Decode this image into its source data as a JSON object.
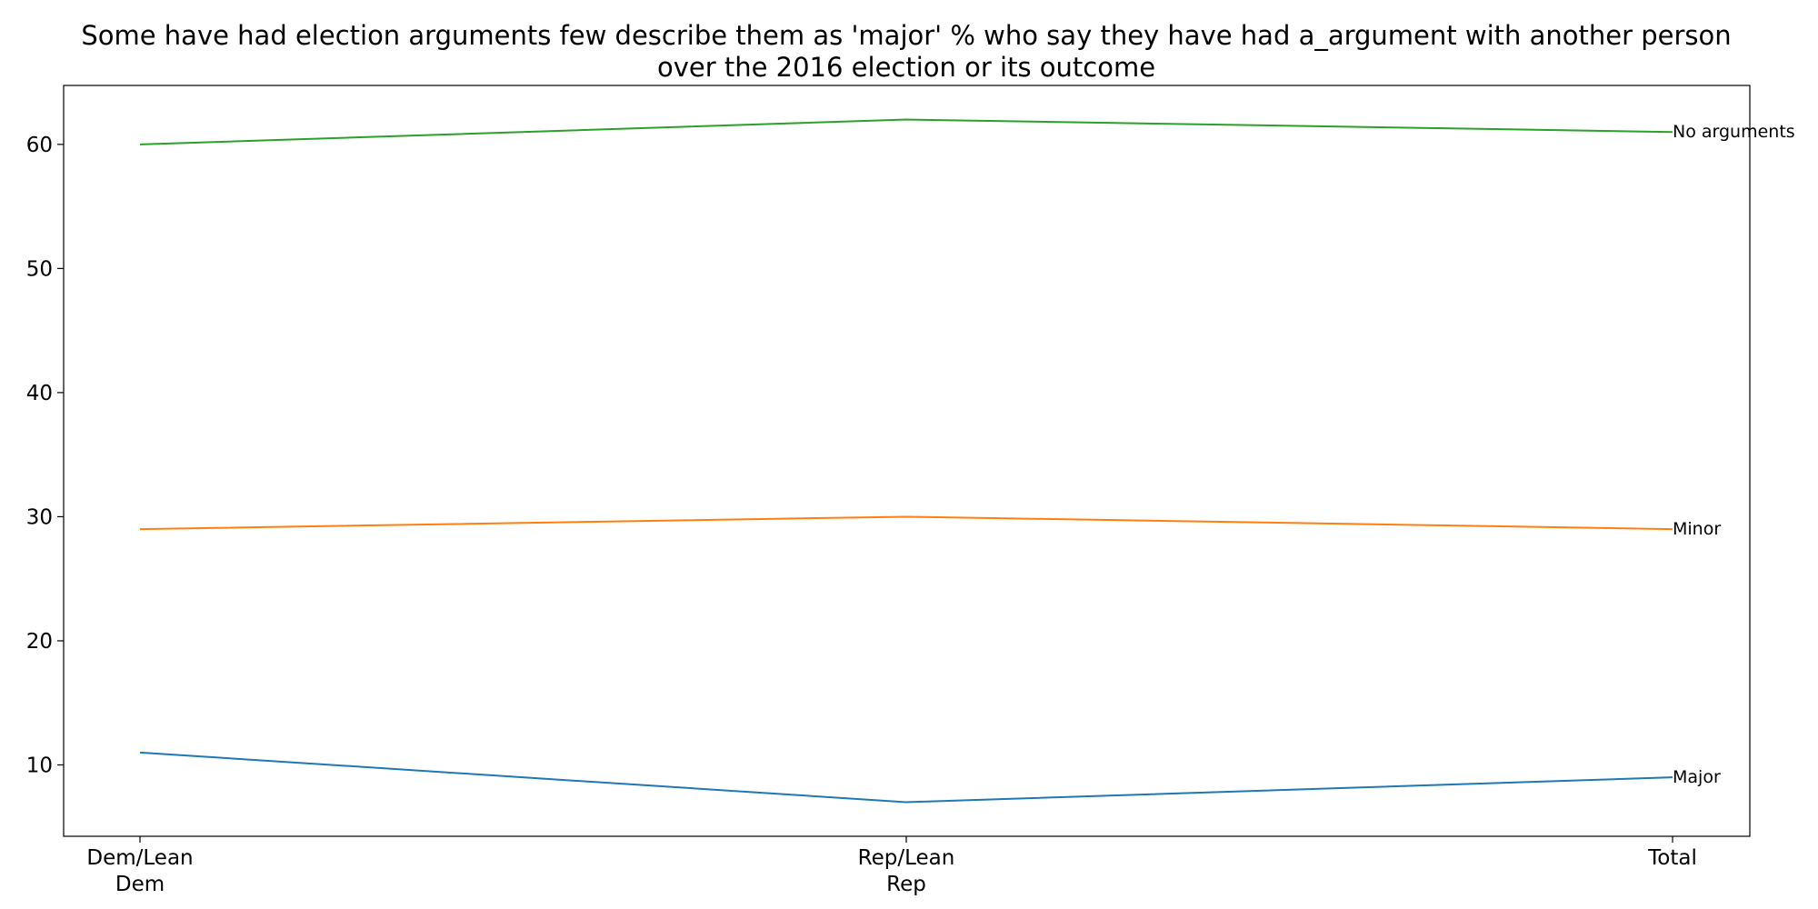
{
  "chart_data": {
    "type": "line",
    "title": "Some have had election arguments few describe them as 'major' % who say they have had a_argument with another person over the 2016 election or its outcome",
    "title_lines": [
      "Some have had election arguments few describe them as 'major' % who say they have had a_argument with another person",
      "over the 2016 election or its outcome"
    ],
    "xlabel": "",
    "ylabel": "",
    "categories": [
      "Dem/Lean Dem",
      "Rep/Lean Rep",
      "Total"
    ],
    "category_lines": [
      [
        "Dem/Lean",
        "Dem"
      ],
      [
        "Rep/Lean",
        "Rep"
      ],
      [
        "Total"
      ]
    ],
    "series": [
      {
        "name": "Major",
        "values": [
          11,
          7,
          9
        ],
        "color": "#1f77b4"
      },
      {
        "name": "Minor",
        "values": [
          29,
          30,
          29
        ],
        "color": "#ff7f0e"
      },
      {
        "name": "No arguments",
        "values": [
          60,
          62,
          61
        ],
        "color": "#2ca02c"
      }
    ],
    "yticks": [
      10,
      20,
      30,
      40,
      50,
      60
    ],
    "ylim": [
      4.25,
      64.75
    ],
    "grid": false,
    "legend": "none; series names printed at right end of each line"
  }
}
